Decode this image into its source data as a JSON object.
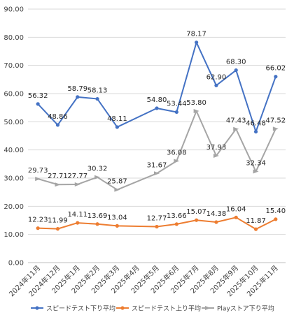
{
  "chart_data": {
    "type": "line",
    "categories": [
      "2024年11月",
      "2024年12月",
      "2025年1月",
      "2025年2月",
      "2025年3月",
      "2025年4月",
      "2025年5月",
      "2025年6月",
      "2025年7月",
      "2025年8月",
      "2025年9月",
      "2025年10月",
      "2025年11月"
    ],
    "ylim": [
      0,
      90
    ],
    "yticks": [
      "0.00",
      "10.00",
      "20.00",
      "30.00",
      "40.00",
      "50.00",
      "60.00",
      "70.00",
      "80.00",
      "90.00"
    ],
    "ytick_values": [
      0,
      10,
      20,
      30,
      40,
      50,
      60,
      70,
      80,
      90
    ],
    "grid": true,
    "legend": "bottom",
    "series": [
      {
        "name": "スピードテスト下り平均",
        "color": "#4472C4",
        "values": [
          56.32,
          48.86,
          58.79,
          58.13,
          48.11,
          null,
          54.8,
          53.44,
          78.17,
          62.9,
          68.3,
          46.48,
          66.02
        ],
        "labels": [
          "56.32",
          "48.86",
          "58.79",
          "58.13",
          "48.11",
          "",
          "54.80",
          "53.44",
          "78.17",
          "62.90",
          "68.30",
          "46.48",
          "66.02"
        ]
      },
      {
        "name": "スピードテスト上り平均",
        "color": "#ED7D31",
        "values": [
          12.23,
          11.99,
          14.11,
          13.69,
          13.04,
          null,
          12.77,
          13.66,
          15.07,
          14.38,
          16.04,
          11.87,
          15.4
        ],
        "labels": [
          "12.23",
          "11.99",
          "14.11",
          "13.69",
          "13.04",
          "",
          "12.77",
          "13.66",
          "15.07",
          "14.38",
          "16.04",
          "11.87",
          "15.40"
        ]
      },
      {
        "name": "Playストア下り平均",
        "color": "#A5A5A5",
        "values": [
          29.73,
          27.71,
          27.77,
          30.32,
          25.87,
          null,
          31.67,
          36.08,
          53.8,
          37.93,
          47.43,
          32.34,
          47.52
        ],
        "labels": [
          "29.73",
          "27.71",
          "27.77",
          "30.32",
          "25.87",
          "",
          "31.67",
          "36.08",
          "53.80",
          "37.93",
          "47.43",
          "32.34",
          "47.52"
        ]
      }
    ]
  }
}
